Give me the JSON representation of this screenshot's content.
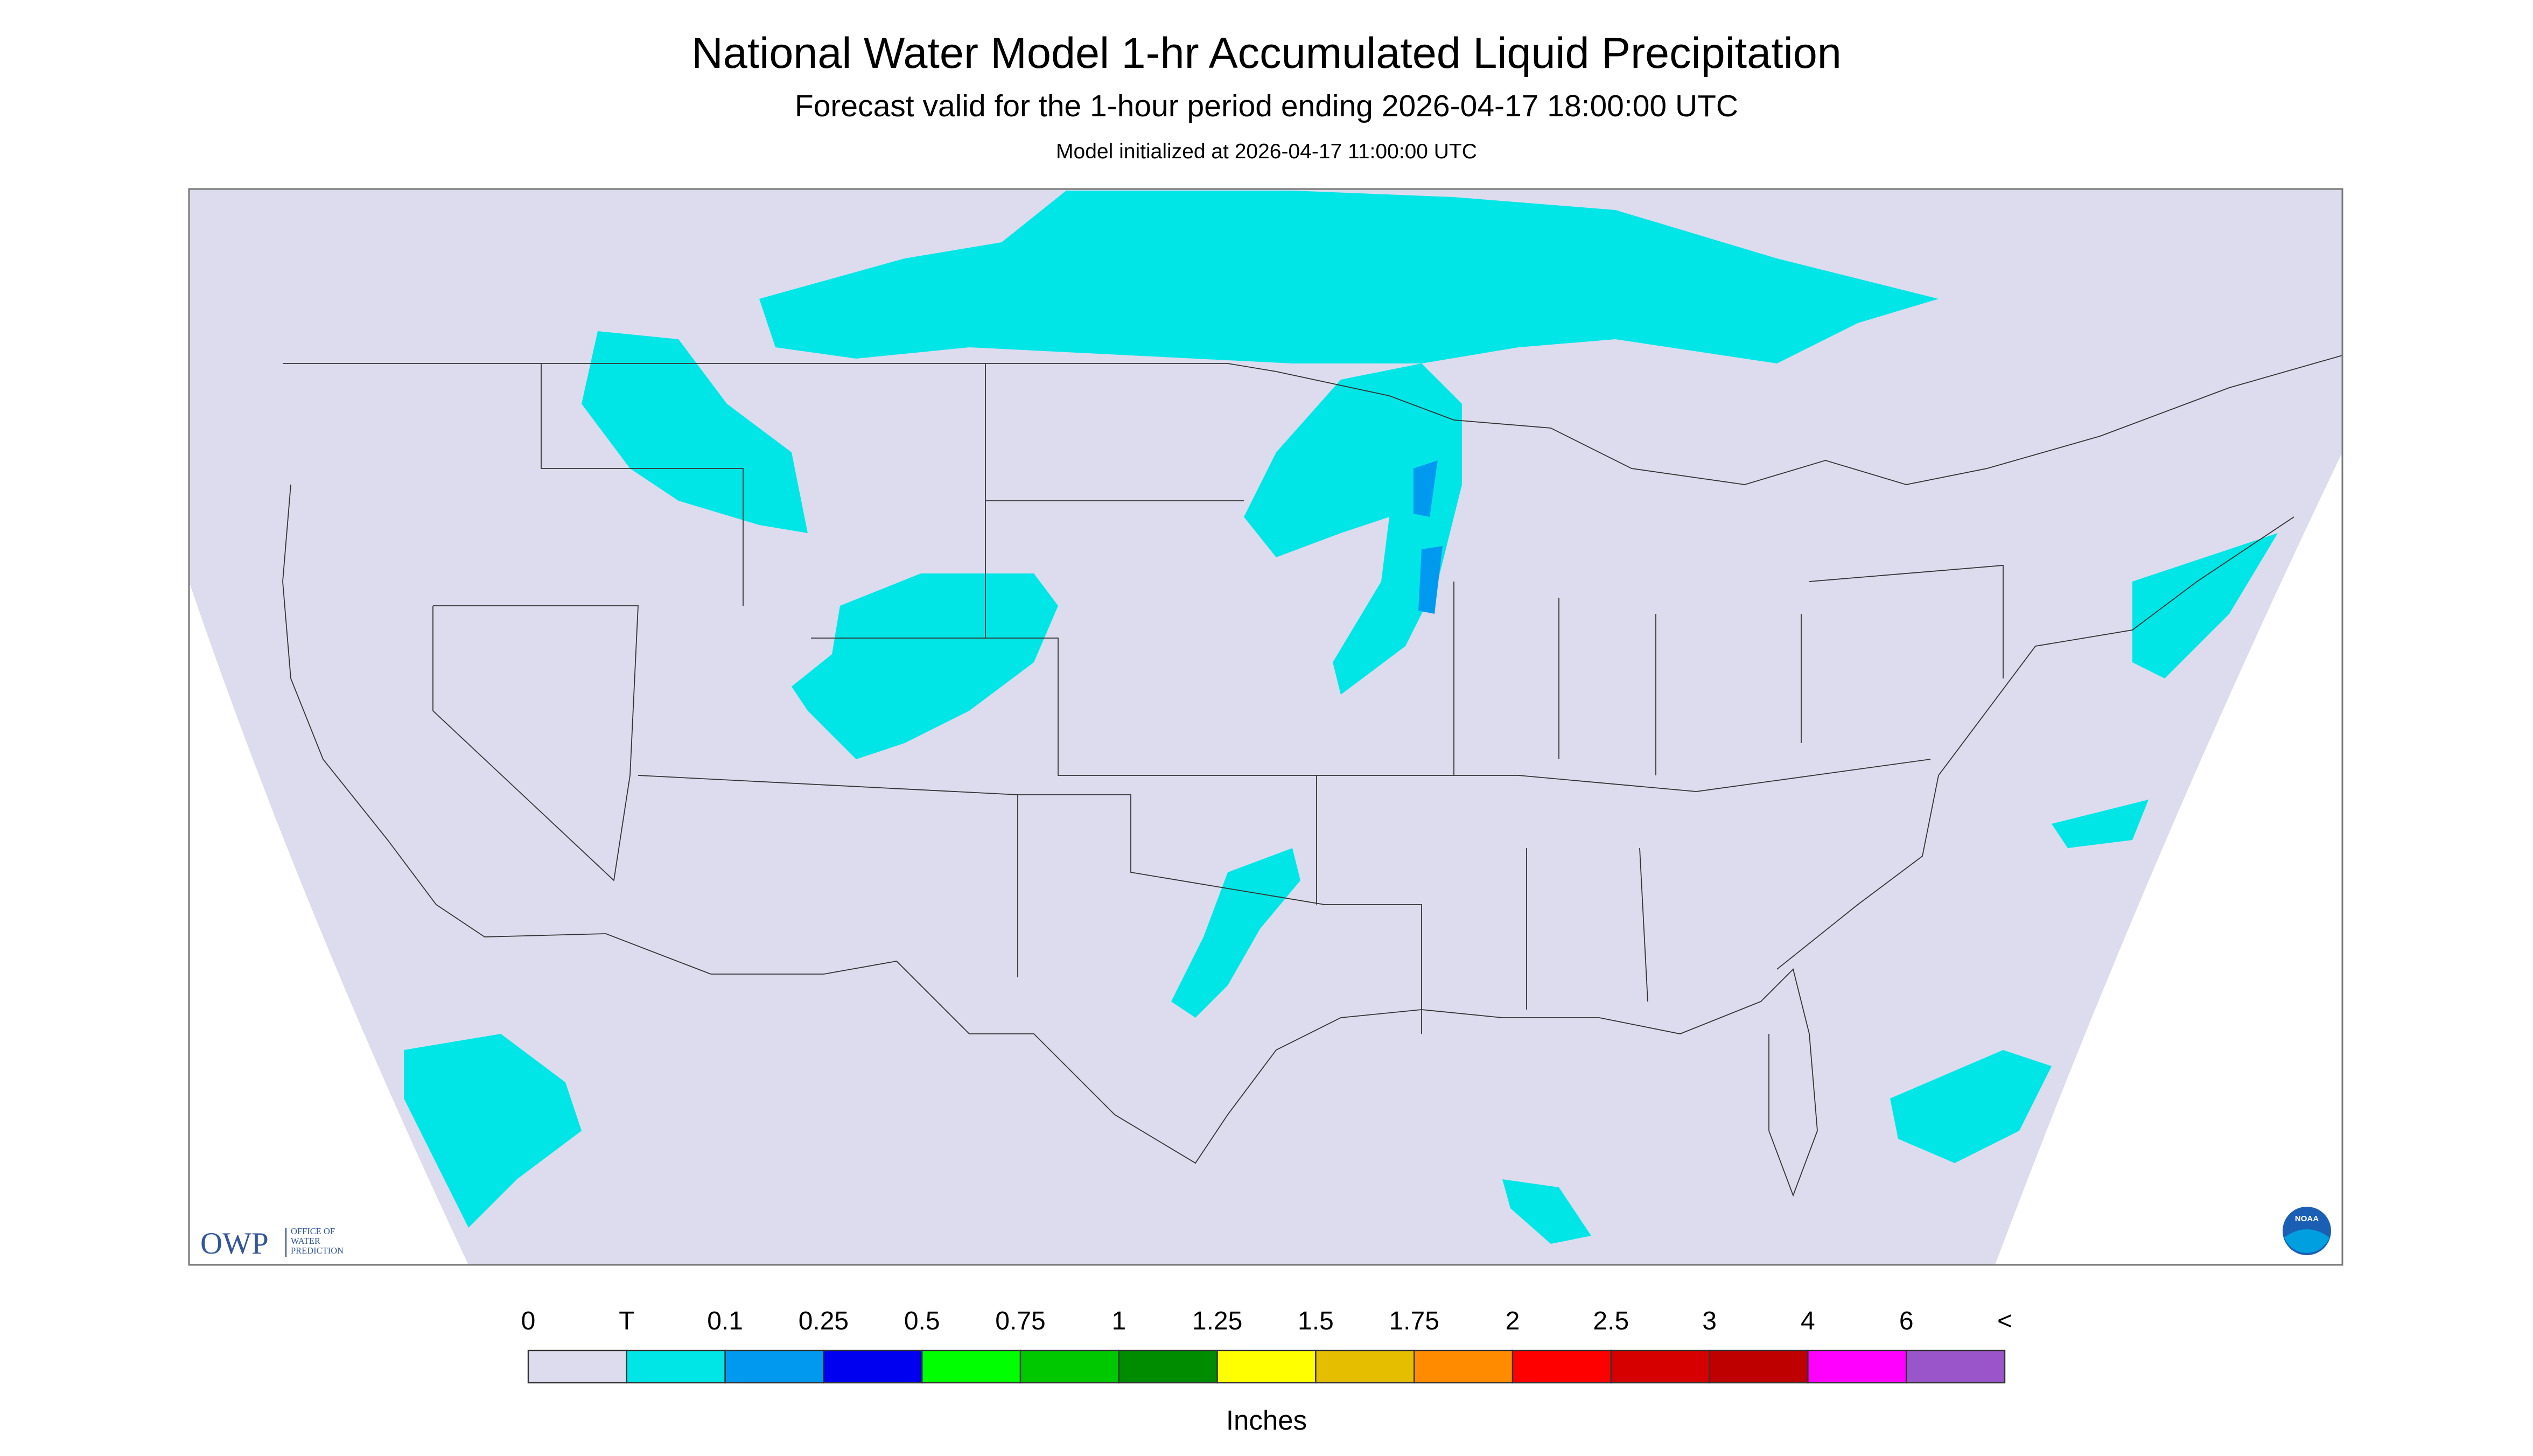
{
  "header": {
    "title": "National Water Model 1-hr Accumulated Liquid Precipitation",
    "subtitle": "Forecast valid for the 1-hour period ending 2026-04-17 18:00:00 UTC",
    "init": "Model initialized at 2026-04-17 11:00:00 UTC"
  },
  "legend": {
    "labels": [
      "0",
      "T",
      "0.1",
      "0.25",
      "0.5",
      "0.75",
      "1",
      "1.25",
      "1.5",
      "1.75",
      "2",
      "2.5",
      "3",
      "4",
      "6",
      "<"
    ],
    "colors": [
      "#dcdcee",
      "#00e6e6",
      "#0099f0",
      "#0000f0",
      "#00ff00",
      "#00c800",
      "#008c00",
      "#ffff00",
      "#e6be00",
      "#ff8c00",
      "#ff0000",
      "#d70000",
      "#bf0000",
      "#ff00ff",
      "#9955c9"
    ],
    "unit": "Inches"
  },
  "logo": {
    "abbr": "OWP",
    "lines": [
      "OFFICE OF",
      "WATER",
      "PREDICTION"
    ]
  },
  "badge": "NOAA"
}
